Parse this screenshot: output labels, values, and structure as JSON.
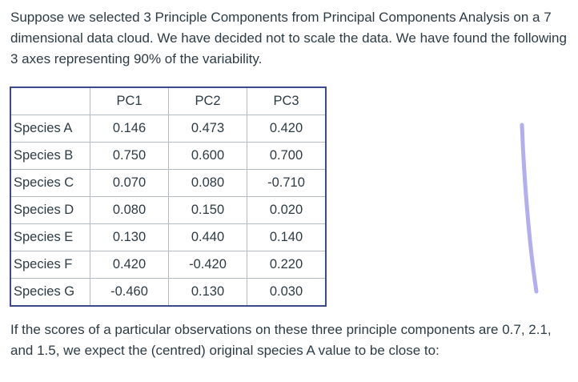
{
  "intro": "Suppose we selected 3 Principle Components from Principal Components Analysis on a 7 dimensional data cloud. We have decided not to scale the data. We have  found the following 3 axes representing 90% of the variability.",
  "table": {
    "corner": "",
    "columns": [
      "PC1",
      "PC2",
      "PC3"
    ],
    "rows": [
      {
        "label": "Species A",
        "values": [
          "0.146",
          "0.473",
          "0.420"
        ]
      },
      {
        "label": "Species B",
        "values": [
          "0.750",
          "0.600",
          "0.700"
        ]
      },
      {
        "label": "Species C",
        "values": [
          "0.070",
          "0.080",
          "-0.710"
        ]
      },
      {
        "label": "Species D",
        "values": [
          "0.080",
          "0.150",
          "0.020"
        ]
      },
      {
        "label": "Species E",
        "values": [
          "0.130",
          "0.440",
          "0.140"
        ]
      },
      {
        "label": "Species F",
        "values": [
          "0.420",
          "-0.420",
          "0.220"
        ]
      },
      {
        "label": "Species G",
        "values": [
          "-0.460",
          "0.130",
          "0.030"
        ]
      }
    ]
  },
  "question": "If the scores of a particular observations on these three principle components are 0.7, 2.1, and 1.5, we expect the (centred) original species A value to be close to:",
  "colors": {
    "text": "#2d3b45",
    "table_border": "#3a4a8a",
    "pen_mark": "#b3aef0"
  }
}
